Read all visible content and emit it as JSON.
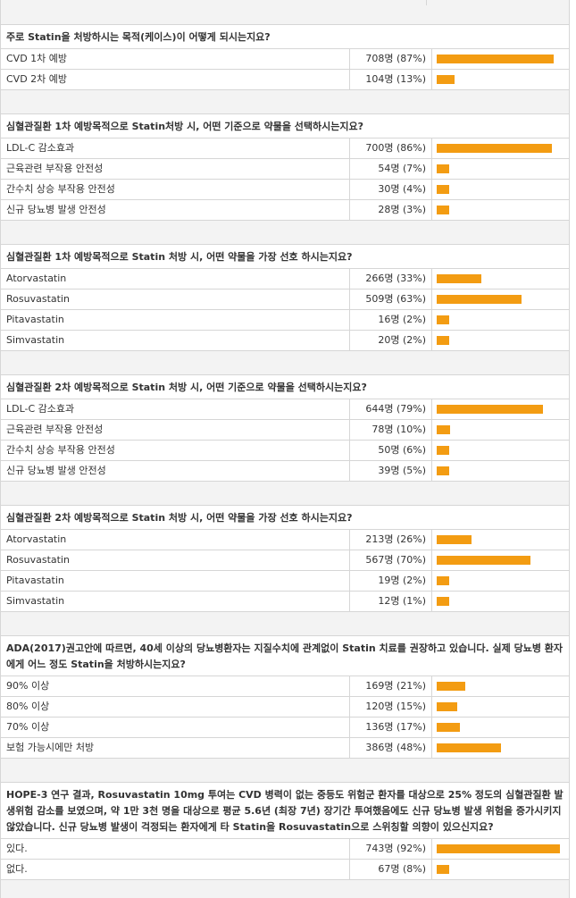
{
  "colors": {
    "bar": "#f39c12",
    "band": "#f3f3f3",
    "border": "#d6d6d6"
  },
  "questions": [
    {
      "title": "주로 Statin을 처방하시는 목적(케이스)이 어떻게 되시는지요?",
      "options": [
        {
          "label": "CVD 1차 예방",
          "count": "708명 (87%)",
          "percent": 87
        },
        {
          "label": "CVD 2차 예방",
          "count": "104명 (13%)",
          "percent": 13
        }
      ]
    },
    {
      "title": "심혈관질환 1차 예방목적으로 Statin처방 시, 어떤 기준으로 약물을 선택하시는지요?",
      "options": [
        {
          "label": "LDL-C 감소효과",
          "count": "700명 (86%)",
          "percent": 86
        },
        {
          "label": "근육관련 부작용 안전성",
          "count": "54명 (7%)",
          "percent": 7
        },
        {
          "label": "간수치 상승 부작용 안전성",
          "count": "30명 (4%)",
          "percent": 4
        },
        {
          "label": "신규 당뇨병 발생 안전성",
          "count": "28명 (3%)",
          "percent": 3
        }
      ]
    },
    {
      "title": "심혈관질환 1차 예방목적으로 Statin 처방 시, 어떤 약물을 가장 선호 하시는지요?",
      "options": [
        {
          "label": "Atorvastatin",
          "count": "266명 (33%)",
          "percent": 33
        },
        {
          "label": "Rosuvastatin",
          "count": "509명 (63%)",
          "percent": 63
        },
        {
          "label": "Pitavastatin",
          "count": "16명 (2%)",
          "percent": 2
        },
        {
          "label": "Simvastatin",
          "count": "20명 (2%)",
          "percent": 2
        }
      ]
    },
    {
      "title": "심혈관질환 2차 예방목적으로 Statin 처방 시, 어떤 기준으로 약물을 선택하시는지요?",
      "options": [
        {
          "label": "LDL-C 감소효과",
          "count": "644명 (79%)",
          "percent": 79
        },
        {
          "label": "근육관련 부작용 안전성",
          "count": "78명 (10%)",
          "percent": 10
        },
        {
          "label": "간수치 상승 부작용 안전성",
          "count": "50명 (6%)",
          "percent": 6
        },
        {
          "label": "신규 당뇨병 발생 안전성",
          "count": "39명 (5%)",
          "percent": 5
        }
      ]
    },
    {
      "title": "심혈관질환 2차 예방목적으로 Statin 처방 시, 어떤 약물을 가장 선호 하시는지요?",
      "options": [
        {
          "label": "Atorvastatin",
          "count": "213명 (26%)",
          "percent": 26
        },
        {
          "label": "Rosuvastatin",
          "count": "567명 (70%)",
          "percent": 70
        },
        {
          "label": "Pitavastatin",
          "count": "19명 (2%)",
          "percent": 2
        },
        {
          "label": "Simvastatin",
          "count": "12명 (1%)",
          "percent": 1
        }
      ]
    },
    {
      "title": "ADA(2017)권고안에 따르면, 40세 이상의 당뇨병환자는 지질수치에 관계없이 Statin 치료를 권장하고 있습니다. 실제 당뇨병 환자에게 어느 정도 Statin을 처방하시는지요?",
      "options": [
        {
          "label": "90% 이상",
          "count": "169명 (21%)",
          "percent": 21
        },
        {
          "label": "80% 이상",
          "count": "120명 (15%)",
          "percent": 15
        },
        {
          "label": "70% 이상",
          "count": "136명 (17%)",
          "percent": 17
        },
        {
          "label": "보험 가능시에만 처방",
          "count": "386명 (48%)",
          "percent": 48
        }
      ]
    },
    {
      "title": "HOPE-3 연구 결과, Rosuvastatin 10mg 투여는 CVD 병력이 없는 중등도 위험군 환자를 대상으로 25% 정도의 심혈관질환 발생위험 감소를 보였으며, 약 1만 3천 명을 대상으로 평균 5.6년 (최장 7년) 장기간 투여했음에도 신규 당뇨병 발생 위험을 증가시키지 않았습니다. 신규 당뇨병 발생이 걱정되는 환자에게 타 Statin을 Rosuvastatin으로 스위칭할 의향이 있으신지요?",
      "options": [
        {
          "label": "있다.",
          "count": "743명 (92%)",
          "percent": 92
        },
        {
          "label": "없다.",
          "count": "67명 (8%)",
          "percent": 8
        }
      ]
    }
  ]
}
